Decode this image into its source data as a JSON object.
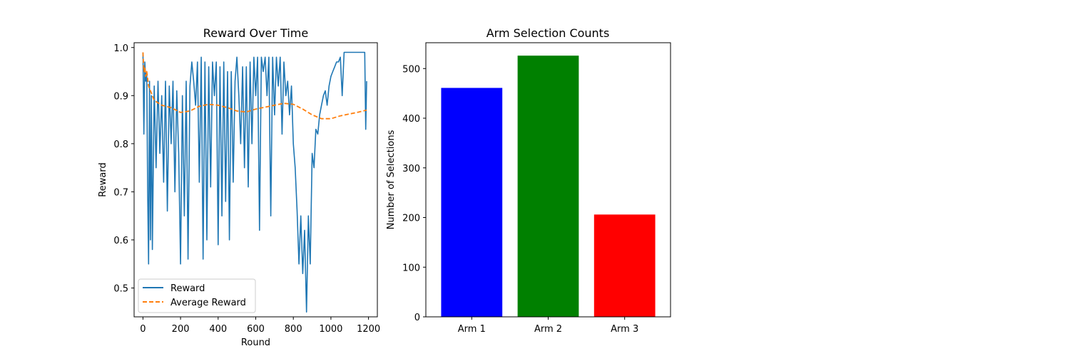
{
  "chart_data": [
    {
      "type": "line",
      "title": "Reward Over Time",
      "xlabel": "Round",
      "ylabel": "Reward",
      "xlim": [
        -47,
        1247
      ],
      "ylim": [
        0.44,
        1.01
      ],
      "x_ticks": [
        0,
        200,
        400,
        600,
        800,
        1000,
        1200
      ],
      "x_tick_labels": [
        "0",
        "200",
        "400",
        "600",
        "800",
        "1000",
        "1200"
      ],
      "y_ticks": [
        0.5,
        0.6,
        0.7,
        0.8,
        0.9,
        1.0
      ],
      "y_tick_labels": [
        "0.5",
        "0.6",
        "0.7",
        "0.8",
        "0.9",
        "1.0"
      ],
      "grid": false,
      "legend_position": "lower-left",
      "series": [
        {
          "name": "Reward",
          "color": "#1f77b4",
          "style": "solid",
          "x": [
            0,
            5,
            10,
            15,
            20,
            25,
            30,
            35,
            40,
            45,
            50,
            60,
            70,
            80,
            90,
            100,
            110,
            120,
            130,
            140,
            150,
            160,
            170,
            180,
            190,
            200,
            210,
            220,
            230,
            240,
            250,
            260,
            270,
            280,
            290,
            300,
            310,
            320,
            330,
            340,
            350,
            360,
            370,
            380,
            390,
            400,
            410,
            420,
            430,
            440,
            450,
            460,
            470,
            480,
            490,
            500,
            510,
            520,
            530,
            540,
            550,
            560,
            570,
            580,
            590,
            600,
            610,
            620,
            630,
            640,
            650,
            660,
            670,
            680,
            690,
            700,
            710,
            720,
            730,
            740,
            750,
            760,
            770,
            780,
            790,
            800,
            810,
            820,
            830,
            840,
            850,
            860,
            870,
            880,
            890,
            900,
            910,
            920,
            930,
            940,
            950,
            960,
            970,
            980,
            990,
            1000,
            1010,
            1020,
            1030,
            1040,
            1050,
            1060,
            1070,
            1080,
            1090,
            1100,
            1110,
            1120,
            1130,
            1140,
            1150,
            1160,
            1170,
            1180,
            1185,
            1190
          ],
          "y": [
            0.99,
            0.82,
            0.97,
            0.93,
            0.95,
            0.7,
            0.55,
            0.93,
            0.6,
            0.9,
            0.58,
            0.92,
            0.75,
            0.93,
            0.78,
            0.9,
            0.72,
            0.93,
            0.66,
            0.92,
            0.8,
            0.93,
            0.7,
            0.91,
            0.78,
            0.55,
            0.9,
            0.65,
            0.93,
            0.56,
            0.92,
            0.97,
            0.93,
            0.88,
            0.97,
            0.72,
            0.98,
            0.56,
            0.97,
            0.6,
            0.96,
            0.71,
            0.97,
            0.9,
            0.97,
            0.59,
            0.96,
            0.65,
            0.97,
            0.68,
            0.95,
            0.6,
            0.95,
            0.72,
            0.93,
            0.98,
            0.9,
            0.8,
            0.96,
            0.75,
            0.96,
            0.71,
            0.97,
            0.8,
            0.98,
            0.9,
            0.98,
            0.62,
            0.98,
            0.95,
            0.98,
            0.9,
            0.98,
            0.65,
            0.98,
            0.86,
            0.98,
            0.92,
            0.98,
            0.82,
            0.97,
            0.9,
            0.93,
            0.86,
            0.92,
            0.8,
            0.75,
            0.66,
            0.55,
            0.65,
            0.53,
            0.62,
            0.45,
            0.65,
            0.55,
            0.78,
            0.75,
            0.83,
            0.82,
            0.86,
            0.88,
            0.9,
            0.91,
            0.88,
            0.92,
            0.94,
            0.95,
            0.96,
            0.97,
            0.97,
            0.98,
            0.9,
            0.99,
            0.99,
            0.99,
            0.99,
            0.99,
            0.99,
            0.99,
            0.99,
            0.99,
            0.99,
            0.99,
            0.99,
            0.83,
            0.93
          ]
        },
        {
          "name": "Average Reward",
          "color": "#ff7f0e",
          "style": "dashed",
          "x": [
            0,
            5,
            10,
            15,
            20,
            30,
            40,
            50,
            60,
            80,
            100,
            150,
            200,
            250,
            300,
            350,
            400,
            450,
            500,
            550,
            600,
            650,
            700,
            750,
            800,
            850,
            900,
            950,
            1000,
            1050,
            1100,
            1150,
            1190
          ],
          "y": [
            0.99,
            0.95,
            0.96,
            0.94,
            0.95,
            0.92,
            0.91,
            0.9,
            0.89,
            0.885,
            0.88,
            0.875,
            0.865,
            0.868,
            0.878,
            0.882,
            0.88,
            0.875,
            0.868,
            0.866,
            0.872,
            0.876,
            0.88,
            0.884,
            0.882,
            0.872,
            0.86,
            0.852,
            0.852,
            0.858,
            0.862,
            0.866,
            0.87
          ]
        }
      ]
    },
    {
      "type": "bar",
      "title": "Arm Selection Counts",
      "xlabel": "",
      "ylabel": "Number of Selections",
      "categories": [
        "Arm 1",
        "Arm 2",
        "Arm 3"
      ],
      "values": [
        461,
        526,
        206
      ],
      "colors": [
        "#0000ff",
        "#008000",
        "#ff0000"
      ],
      "ylim": [
        0,
        552
      ],
      "y_ticks": [
        0,
        100,
        200,
        300,
        400,
        500
      ],
      "y_tick_labels": [
        "0",
        "100",
        "200",
        "300",
        "400",
        "500"
      ],
      "grid": false
    }
  ]
}
